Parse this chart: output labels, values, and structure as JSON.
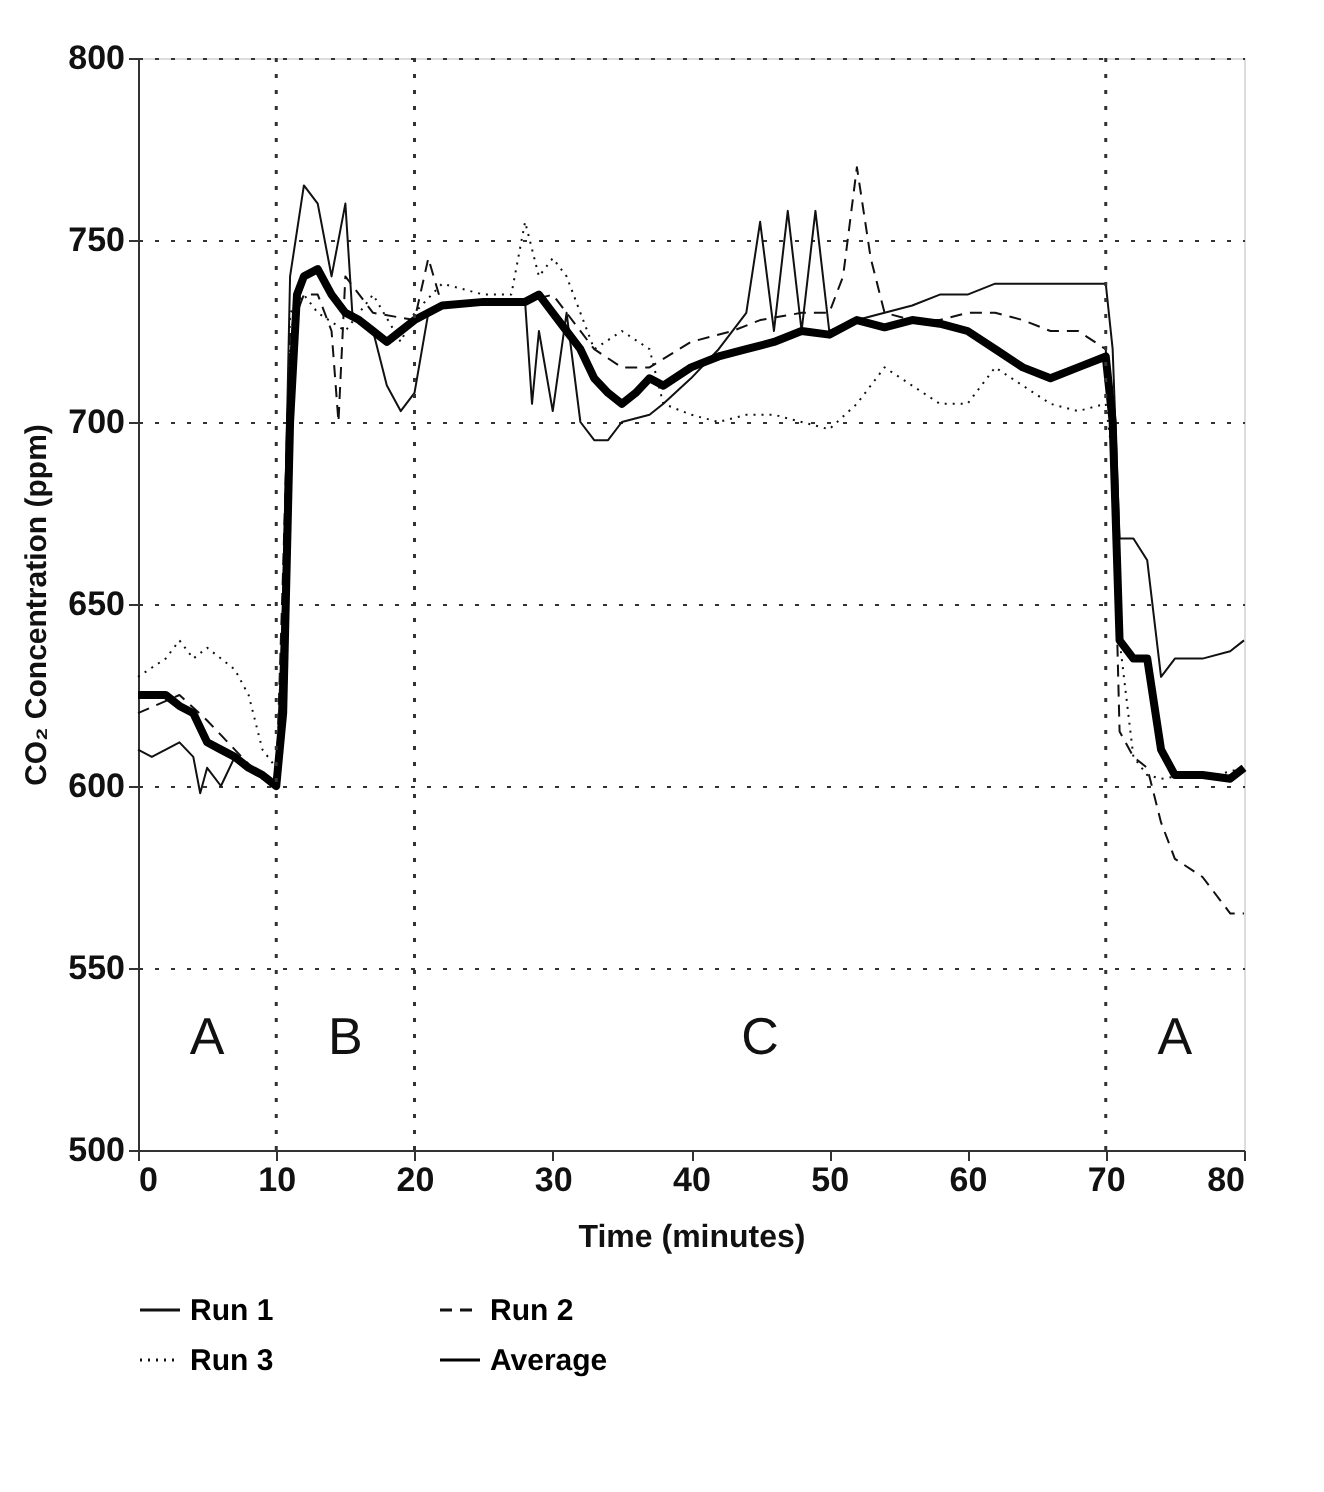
{
  "chart_data": {
    "type": "line",
    "xlabel": "Time (minutes)",
    "ylabel": "CO₂ Concentration (ppm)",
    "xlim": [
      0,
      80
    ],
    "xticks": [
      0,
      10,
      20,
      30,
      40,
      50,
      60,
      70,
      80
    ],
    "ylim": [
      500,
      800
    ],
    "yticks": [
      500,
      550,
      600,
      650,
      700,
      750,
      800
    ],
    "grid": "y",
    "legend": "bottom",
    "marker": "none",
    "series": [
      {
        "name": "Run 1",
        "color": "#111111",
        "line_style": "solid",
        "x": [
          0,
          1,
          2,
          3,
          4,
          4.5,
          5,
          6,
          7,
          8,
          9,
          10,
          10.5,
          11,
          12,
          13,
          14,
          15,
          15.5,
          17,
          18,
          19,
          20,
          21,
          23,
          26,
          28,
          28.5,
          29,
          30,
          31,
          32,
          33,
          34,
          35,
          37,
          38,
          40,
          42,
          44,
          45,
          46,
          47,
          48,
          49,
          50,
          52,
          54,
          56,
          58,
          60,
          62,
          64,
          66,
          68,
          70,
          70.5,
          71,
          72,
          73,
          74,
          75,
          77,
          79,
          80
        ],
        "values": [
          610,
          608,
          610,
          612,
          608,
          598,
          605,
          600,
          608,
          605,
          603,
          600,
          650,
          740,
          765,
          760,
          740,
          760,
          730,
          725,
          710,
          703,
          708,
          730,
          733,
          733,
          733,
          705,
          725,
          703,
          730,
          700,
          695,
          695,
          700,
          702,
          705,
          712,
          720,
          730,
          755,
          725,
          758,
          725,
          758,
          725,
          728,
          730,
          732,
          735,
          735,
          738,
          738,
          738,
          738,
          738,
          720,
          668,
          668,
          662,
          630,
          635,
          635,
          637,
          640
        ]
      },
      {
        "name": "Run 2",
        "color": "#111111",
        "line_style": "dashed",
        "x": [
          0,
          3,
          5,
          7,
          9,
          10,
          10.5,
          11,
          12,
          13,
          14,
          14.5,
          15,
          17,
          20,
          21,
          22,
          25,
          28,
          30,
          31,
          33,
          35,
          37,
          40,
          43,
          45,
          48,
          50,
          51,
          52,
          53,
          54,
          56,
          58,
          60,
          62,
          64,
          66,
          68,
          70,
          70.5,
          71,
          72,
          73,
          74,
          75,
          77,
          79,
          80
        ],
        "values": [
          620,
          625,
          618,
          610,
          602,
          600,
          660,
          725,
          735,
          735,
          725,
          700,
          740,
          730,
          728,
          745,
          732,
          733,
          733,
          735,
          730,
          720,
          715,
          715,
          722,
          725,
          728,
          730,
          730,
          740,
          770,
          745,
          730,
          728,
          728,
          730,
          730,
          728,
          725,
          725,
          720,
          690,
          615,
          608,
          605,
          590,
          580,
          575,
          565,
          565
        ]
      },
      {
        "name": "Run 3",
        "color": "#111111",
        "line_style": "dotted",
        "x": [
          0,
          2,
          3,
          4,
          5,
          6,
          7,
          8,
          9,
          10,
          10.5,
          11,
          12,
          13,
          15,
          17,
          19,
          20,
          22,
          25,
          27,
          28,
          29,
          30,
          31,
          32,
          33,
          35,
          37,
          38,
          40,
          42,
          44,
          46,
          48,
          50,
          52,
          54,
          56,
          58,
          60,
          62,
          64,
          66,
          68,
          70,
          70.5,
          71,
          72,
          73,
          74,
          76,
          78,
          80
        ],
        "values": [
          630,
          635,
          640,
          635,
          638,
          635,
          632,
          625,
          610,
          605,
          640,
          730,
          735,
          730,
          725,
          735,
          722,
          730,
          738,
          735,
          735,
          755,
          740,
          745,
          740,
          730,
          720,
          725,
          720,
          705,
          702,
          700,
          702,
          702,
          700,
          698,
          705,
          715,
          710,
          705,
          705,
          715,
          710,
          705,
          703,
          705,
          690,
          640,
          608,
          603,
          602,
          603,
          603,
          605
        ]
      },
      {
        "name": "Average",
        "color": "#000000",
        "line_style": "solid",
        "x": [
          0,
          2,
          3,
          4,
          5,
          6,
          7,
          8,
          9,
          10,
          10.5,
          11,
          11.5,
          12,
          13,
          14,
          15,
          16,
          17,
          18,
          19,
          20,
          22,
          25,
          28,
          29,
          30,
          31,
          32,
          33,
          34,
          35,
          36,
          37,
          38,
          40,
          42,
          44,
          46,
          48,
          50,
          52,
          54,
          56,
          58,
          60,
          62,
          64,
          66,
          68,
          70,
          70.5,
          71,
          72,
          73,
          74,
          75,
          77,
          79,
          80
        ],
        "values": [
          625,
          625,
          622,
          620,
          612,
          610,
          608,
          605,
          603,
          600,
          620,
          700,
          735,
          740,
          742,
          735,
          730,
          728,
          725,
          722,
          725,
          728,
          732,
          733,
          733,
          735,
          730,
          725,
          720,
          712,
          708,
          705,
          708,
          712,
          710,
          715,
          718,
          720,
          722,
          725,
          724,
          728,
          726,
          728,
          727,
          725,
          720,
          715,
          712,
          715,
          718,
          700,
          640,
          635,
          635,
          610,
          603,
          603,
          602,
          605
        ]
      }
    ],
    "ref_lines": [
      {
        "axis": "x",
        "value": 10,
        "line_style": "dotted"
      },
      {
        "axis": "x",
        "value": 20,
        "line_style": "dotted"
      },
      {
        "axis": "x",
        "value": 70,
        "line_style": "dotted"
      }
    ],
    "annotations": [
      "A",
      "B",
      "C",
      "A"
    ]
  }
}
